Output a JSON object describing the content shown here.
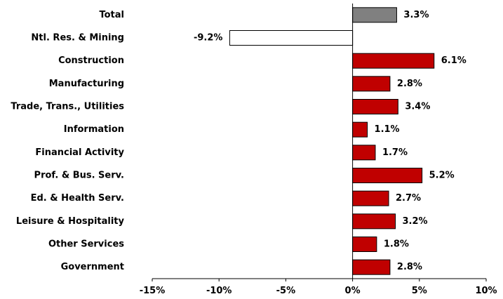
{
  "chart_data": {
    "type": "bar",
    "orientation": "horizontal",
    "categories": [
      "Total",
      "Ntl. Res. & Mining",
      "Construction",
      "Manufacturing",
      "Trade, Trans., Utilities",
      "Information",
      "Financial Activity",
      "Prof. & Bus. Serv.",
      "Ed. & Health Serv.",
      "Leisure & Hospitality",
      "Other Services",
      "Government"
    ],
    "values": [
      3.3,
      -9.2,
      6.1,
      2.8,
      3.4,
      1.1,
      1.7,
      5.2,
      2.7,
      3.2,
      1.8,
      2.8
    ],
    "value_labels": [
      "3.3%",
      "-9.2%",
      "6.1%",
      "2.8%",
      "3.4%",
      "1.1%",
      "1.7%",
      "5.2%",
      "2.7%",
      "3.2%",
      "1.8%",
      "2.8%"
    ],
    "xlim": [
      -15,
      10
    ],
    "xticks": [
      -15,
      -10,
      -5,
      0,
      5,
      10
    ],
    "xtick_labels": [
      "-15%",
      "-10%",
      "-5%",
      "0%",
      "5%",
      "10%"
    ],
    "title": "",
    "xlabel": "",
    "ylabel": "",
    "grid": false,
    "legend": "none",
    "colors": {
      "default": "#c00000",
      "total": "#808080",
      "negative": "#ffffff",
      "stroke": "#000000"
    }
  }
}
